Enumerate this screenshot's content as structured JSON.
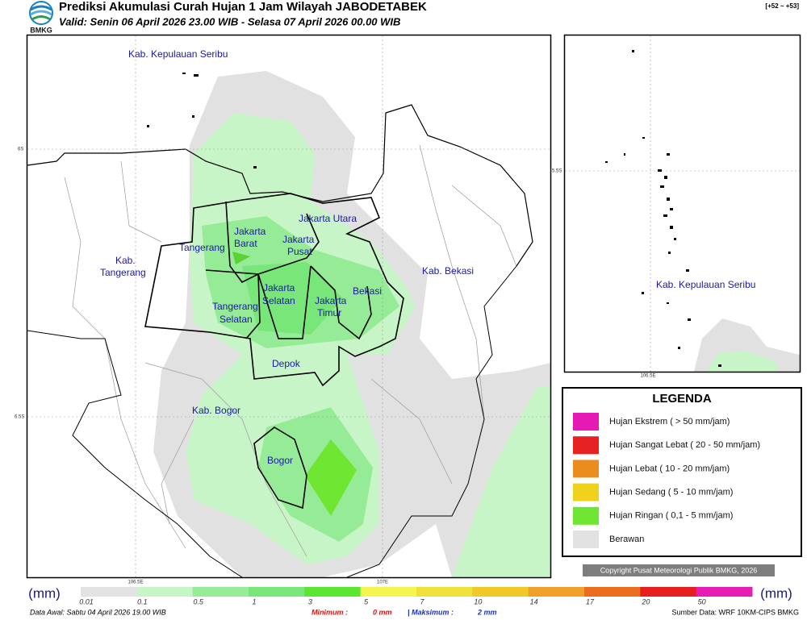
{
  "header": {
    "logo_text": "BMKG",
    "title": "Prediksi Akumulasi Curah Hujan 1 Jam Wilayah JABODETABEK",
    "subtitle": "Valid: Senin 06 April 2026 23.00 WIB - Selasa 07 April 2026 00.00 WIB",
    "run_code": "[+52 ~ +53]"
  },
  "map": {
    "labels": [
      {
        "lines": [
          "Kab. Kepulauan Seribu"
        ]
      },
      {
        "lines": [
          "Jakarta Utara"
        ]
      },
      {
        "lines": [
          "Jakarta",
          "Barat"
        ]
      },
      {
        "lines": [
          "Jakarta",
          "Pusat"
        ]
      },
      {
        "lines": [
          "Tangerang"
        ]
      },
      {
        "lines": [
          "Kab.",
          "Tangerang"
        ]
      },
      {
        "lines": [
          "Kab. Bekasi"
        ]
      },
      {
        "lines": [
          "Jakarta",
          "Selatan"
        ]
      },
      {
        "lines": [
          "Jakarta",
          "Timur"
        ]
      },
      {
        "lines": [
          "Bekasi"
        ]
      },
      {
        "lines": [
          "Tangerang",
          "Selatan"
        ]
      },
      {
        "lines": [
          "Depok"
        ]
      },
      {
        "lines": [
          "Kab. Bogor"
        ]
      },
      {
        "lines": [
          "Bogor"
        ]
      }
    ],
    "lat_labels": [
      "6S",
      "6.5S"
    ],
    "lon_labels": [
      "106.5E",
      "107E"
    ]
  },
  "inset": {
    "label": "Kab. Kepulauan Seribu",
    "lat_label": "5.5S",
    "lon_label": "106.5E"
  },
  "legend": {
    "title": "LEGENDA",
    "items": [
      {
        "label": "Hujan Ekstrem ( > 50 mm/jam)",
        "color": "#e619b4"
      },
      {
        "label": "Hujan Sangat Lebat ( 20 - 50 mm/jam)",
        "color": "#e62323"
      },
      {
        "label": "Hujan Lebat ( 10 - 20 mm/jam)",
        "color": "#eb8c1e"
      },
      {
        "label": "Hujan Sedang ( 5 - 10 mm/jam)",
        "color": "#f0d21e"
      },
      {
        "label": "Hujan Ringan ( 0,1 - 5 mm/jam)",
        "color": "#6ee632"
      },
      {
        "label": "Berawan",
        "color": "#e1e1e1"
      }
    ]
  },
  "copyright": "Copyright Pusat Meteorologi Publik BMKG, 2026",
  "colorbar": {
    "unit": "(mm)",
    "ticks": [
      "0.01",
      "0.1",
      "0.5",
      "1",
      "3",
      "5",
      "7",
      "10",
      "14",
      "17",
      "20",
      "50"
    ],
    "colors": [
      "#e3e3e3",
      "#c8f5c8",
      "#96eb96",
      "#78e678",
      "#5ae632",
      "#f5f550",
      "#f0e03c",
      "#f0c828",
      "#f0a028",
      "#eb6e1e",
      "#e61e1e",
      "#e61eb4"
    ]
  },
  "footer": {
    "data_awal": "Data Awal: Sabtu 04 April 2026 19.00 WIB",
    "min_label": "Minimum :",
    "min_value": "0 mm",
    "max_label": "| Maksimum :",
    "max_value": "2 mm",
    "source": "Sumber Data: WRF 10KM-CIPS BMKG"
  }
}
